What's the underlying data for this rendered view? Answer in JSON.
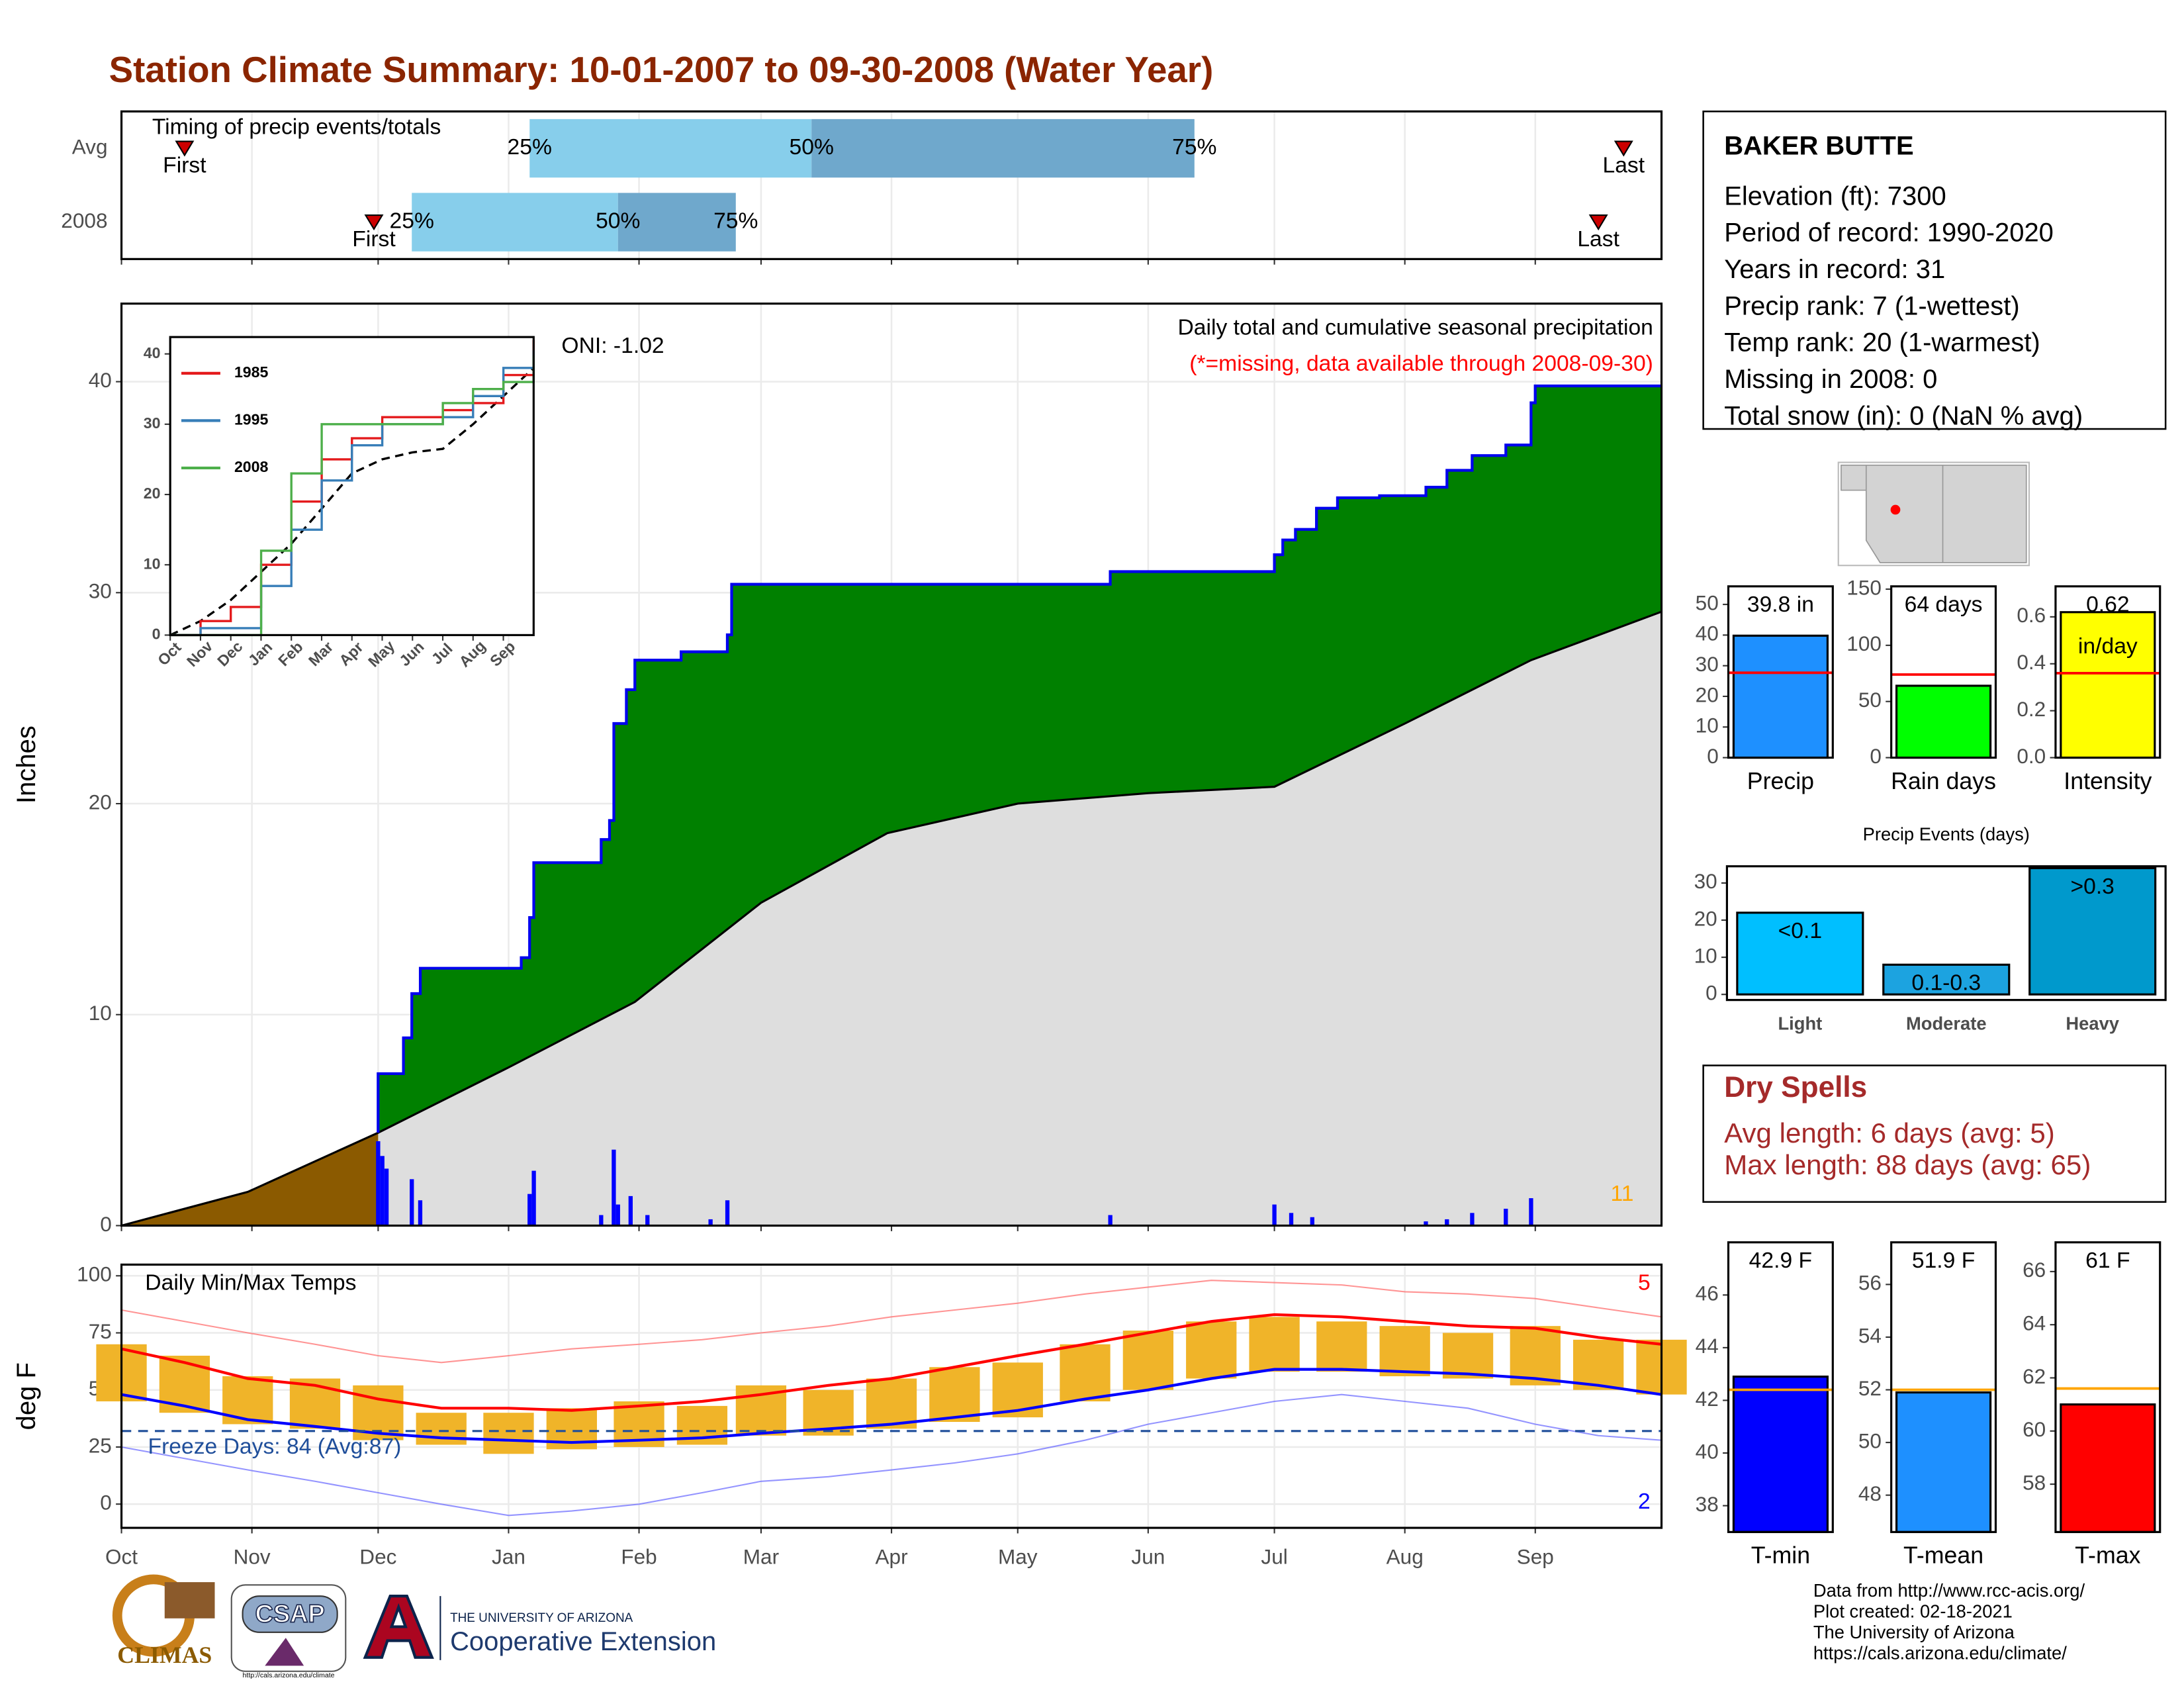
{
  "title": "Station Climate Summary: 10-01-2007 to 09-30-2008 (Water Year)",
  "station": {
    "name": "BAKER BUTTE",
    "lines": [
      "Elevation (ft): 7300",
      "Period of record: 1990-2020",
      "Years in record: 31",
      "Precip rank: 7 (1-wettest)",
      "Temp rank: 20 (1-warmest)",
      "Missing in 2008: 0",
      "Total snow (in): 0 (NaN % avg)"
    ]
  },
  "dry_spells": {
    "title": "Dry Spells",
    "lines": [
      "Avg length: 6 days (avg: 5)",
      "Max length: 88 days (avg: 65)"
    ]
  },
  "footer": {
    "credits": [
      "Data from http://www.rcc-acis.org/",
      "Plot created: 02-18-2021",
      "The University of Arizona",
      "https://cals.arizona.edu/climate/"
    ],
    "logos": [
      "CLIMAS",
      "CSAP",
      "http://cals.arizona.edu/climate",
      "THE UNIVERSITY OF ARIZONA",
      "Cooperative Extension"
    ]
  },
  "chart_data": [
    {
      "type": "timing",
      "title": "Timing of precip events/totals",
      "categories": [
        "Avg",
        "2008"
      ],
      "series": [
        {
          "name": "First",
          "values": [
            15,
            60
          ]
        },
        {
          "name": "25%",
          "values": [
            97,
            69
          ]
        },
        {
          "name": "50%",
          "values": [
            164,
            118
          ]
        },
        {
          "name": "75%",
          "values": [
            255,
            146
          ]
        },
        {
          "name": "Last",
          "values": [
            357,
            351
          ]
        }
      ],
      "colors": [
        "#87ceeb",
        "#6fa8cc"
      ],
      "marker_color": "#cc0000",
      "grid": true,
      "xlim": [
        0,
        366
      ],
      "xticks": [
        0,
        31,
        61,
        92,
        123,
        152,
        183,
        213,
        244,
        274,
        305,
        336
      ]
    },
    {
      "type": "cumulative_precip",
      "title": "Daily total and cumulative seasonal precipitation",
      "subtitle": "(*=missing, data available through 2008-09-30)",
      "oni": "ONI: -1.02",
      "count_label": "11",
      "ylabel": "Inches",
      "grid": true,
      "xlim": [
        0,
        366
      ],
      "xticks": [
        0,
        31,
        61,
        92,
        123,
        152,
        183,
        213,
        244,
        274,
        305,
        336
      ],
      "ylim": [
        0,
        43.7
      ],
      "yticks": [
        0,
        10,
        20,
        30,
        40
      ],
      "normal": {
        "color": "#dedede",
        "deficit_color": "#8b5a00",
        "x": [
          0,
          30,
          61,
          92,
          122,
          152,
          182,
          213,
          244,
          274,
          305,
          335,
          366
        ],
        "values": [
          0,
          1.6,
          4.4,
          7.5,
          10.6,
          15.3,
          18.6,
          20.0,
          20.5,
          20.8,
          23.8,
          26.8,
          29.1
        ]
      },
      "cumulative": {
        "color": "#0000ee",
        "fill": "#008000",
        "x": [
          61,
          61,
          67,
          69,
          71,
          86,
          95,
          97,
          98,
          114,
          116,
          117,
          120,
          122,
          133,
          144,
          145,
          235,
          274,
          276,
          279,
          284,
          289,
          299,
          310,
          315,
          321,
          329,
          335,
          336,
          366
        ],
        "values": [
          4.4,
          7.2,
          8.9,
          11.0,
          12.2,
          12.2,
          12.7,
          14.6,
          17.2,
          18.3,
          19.2,
          23.8,
          25.4,
          26.8,
          27.2,
          28.0,
          30.4,
          31.0,
          31.8,
          32.5,
          33.0,
          34.0,
          34.5,
          34.6,
          35.0,
          35.8,
          36.5,
          37.0,
          39.0,
          39.8,
          39.8
        ]
      },
      "daily": {
        "color": "#0000ff",
        "x": [
          61,
          62,
          63,
          69,
          71,
          97,
          98,
          114,
          117,
          118,
          121,
          125,
          140,
          144,
          235,
          274,
          278,
          283,
          310,
          315,
          321,
          329,
          335
        ],
        "values": [
          4.0,
          3.3,
          2.7,
          2.2,
          1.2,
          1.5,
          2.6,
          0.5,
          3.6,
          1.0,
          1.4,
          0.5,
          0.3,
          1.2,
          0.5,
          1.0,
          0.6,
          0.4,
          0.2,
          0.3,
          0.6,
          0.8,
          1.3
        ]
      }
    },
    {
      "type": "line",
      "legend": "top-left",
      "x": [
        0,
        1,
        2,
        3,
        4,
        5,
        6,
        7,
        8,
        9,
        10,
        11,
        12
      ],
      "xlim": [
        0,
        12
      ],
      "xticks": [
        {
          "value": 0,
          "label": "Oct"
        },
        {
          "value": 1,
          "label": "Nov"
        },
        {
          "value": 2,
          "label": "Dec"
        },
        {
          "value": 3,
          "label": "Jan"
        },
        {
          "value": 4,
          "label": "Feb"
        },
        {
          "value": 5,
          "label": "Mar"
        },
        {
          "value": 6,
          "label": "Apr"
        },
        {
          "value": 7,
          "label": "May"
        },
        {
          "value": 8,
          "label": "Jun"
        },
        {
          "value": 9,
          "label": "Jul"
        },
        {
          "value": 10,
          "label": "Aug"
        },
        {
          "value": 11,
          "label": "Sep"
        }
      ],
      "ylim": [
        0,
        42.4
      ],
      "yticks": [
        0,
        10,
        20,
        30,
        40
      ],
      "series": [
        {
          "name": "1985",
          "color": "#e41a1c",
          "values": [
            0,
            2,
            4,
            10,
            19,
            25,
            28,
            31,
            31,
            32,
            33,
            37,
            42
          ]
        },
        {
          "name": "1995",
          "color": "#377eb8",
          "values": [
            0,
            1,
            1,
            7,
            15,
            22,
            27,
            30,
            30,
            31,
            34,
            38,
            40.5
          ]
        },
        {
          "name": "2008",
          "color": "#4daf4a",
          "values": [
            0,
            0,
            0,
            12,
            23,
            30,
            30,
            30,
            30,
            33,
            35,
            36,
            39.8
          ]
        }
      ],
      "average": {
        "color": "#000000",
        "values": [
          0,
          2,
          5,
          9,
          13,
          18,
          23,
          25,
          26,
          26.5,
          30,
          34,
          38
        ]
      }
    },
    {
      "type": "bar",
      "xlabel": "Precip",
      "values": [
        39.8
      ],
      "value_labels": [
        "39.8 in"
      ],
      "color": "#1e90ff",
      "average": 27.7,
      "average_color": "#ff0000",
      "ylim": [
        0,
        55.9
      ],
      "yticks": [
        0,
        10,
        20,
        30,
        40,
        50
      ]
    },
    {
      "type": "bar",
      "xlabel": "Rain days",
      "values": [
        64
      ],
      "value_labels": [
        "64 days"
      ],
      "color": "#00ff00",
      "average": 74,
      "average_color": "#ff0000",
      "ylim": [
        0,
        152.5
      ],
      "yticks": [
        0,
        50,
        100,
        150
      ]
    },
    {
      "type": "bar",
      "xlabel": "Intensity",
      "values": [
        0.62
      ],
      "value_labels": [
        "0.62"
      ],
      "unit_label": "in/day",
      "color": "#ffff00",
      "average": 0.36,
      "average_color": "#ff0000",
      "ylim": [
        0,
        0.73
      ],
      "yticks": [
        {
          "value": 0,
          "label": "0.0"
        },
        0.2,
        0.4,
        0.6
      ]
    },
    {
      "type": "bar",
      "title": "Precip Events (days)",
      "categories": [
        "Light",
        "Moderate",
        "Heavy"
      ],
      "values": [
        22,
        8,
        34
      ],
      "bar_labels": [
        "<0.1",
        "0.1-0.3",
        ">0.3"
      ],
      "colors": [
        "#00bfff",
        "#1ca3e0",
        "#0099cc"
      ],
      "ylim": [
        -1.5,
        34.5
      ],
      "yticks": [
        0,
        10,
        20,
        30
      ]
    },
    {
      "type": "temperature",
      "title": "Daily Min/Max Temps",
      "ylabel": "deg F",
      "freeze_label": "Freeze Days: 84 (Avg:87)",
      "high_count": "5",
      "low_count": "2",
      "freeze": 32,
      "grid": true,
      "xlim": [
        0,
        366
      ],
      "xticks": [
        {
          "value": 0,
          "label": "Oct"
        },
        {
          "value": 31,
          "label": "Nov"
        },
        {
          "value": 61,
          "label": "Dec"
        },
        {
          "value": 92,
          "label": "Jan"
        },
        {
          "value": 123,
          "label": "Feb"
        },
        {
          "value": 152,
          "label": "Mar"
        },
        {
          "value": 183,
          "label": "Apr"
        },
        {
          "value": 213,
          "label": "May"
        },
        {
          "value": 244,
          "label": "Jun"
        },
        {
          "value": 274,
          "label": "Jul"
        },
        {
          "value": 305,
          "label": "Aug"
        },
        {
          "value": 336,
          "label": "Sep"
        }
      ],
      "ylim": [
        -10.4,
        104.9
      ],
      "yticks": [
        0,
        25,
        50,
        75,
        100
      ],
      "x": [
        0,
        15,
        30,
        46,
        61,
        76,
        92,
        107,
        123,
        138,
        152,
        168,
        183,
        198,
        213,
        229,
        244,
        259,
        274,
        290,
        305,
        320,
        336,
        351,
        366
      ],
      "normal_max": {
        "color": "#ff0000",
        "values": [
          68,
          62,
          55,
          52,
          46,
          42,
          42,
          41,
          43,
          45,
          48,
          52,
          55,
          60,
          65,
          70,
          75,
          80,
          83,
          82,
          80,
          78,
          77,
          73,
          70
        ]
      },
      "normal_min": {
        "color": "#0000ff",
        "values": [
          48,
          43,
          37,
          34,
          31,
          29,
          28,
          27,
          28,
          29,
          31,
          33,
          35,
          38,
          41,
          46,
          50,
          55,
          59,
          59,
          58,
          57,
          55,
          52,
          48
        ]
      },
      "observed_max": {
        "color": "#f0b429",
        "values": [
          70,
          65,
          56,
          55,
          52,
          40,
          40,
          42,
          45,
          43,
          52,
          50,
          55,
          60,
          62,
          70,
          76,
          80,
          82,
          80,
          78,
          75,
          78,
          72,
          72
        ]
      },
      "observed_min": {
        "values": [
          45,
          40,
          35,
          33,
          28,
          26,
          22,
          24,
          25,
          26,
          30,
          30,
          33,
          36,
          38,
          45,
          50,
          55,
          58,
          58,
          56,
          55,
          52,
          50,
          48
        ]
      },
      "record_high": {
        "color": "#ff6666",
        "values": [
          85,
          80,
          75,
          70,
          65,
          62,
          65,
          68,
          70,
          72,
          75,
          78,
          82,
          85,
          88,
          92,
          95,
          98,
          97,
          96,
          93,
          92,
          90,
          86,
          82
        ]
      },
      "record_low": {
        "color": "#6666ff",
        "values": [
          25,
          20,
          15,
          10,
          5,
          0,
          -5,
          -3,
          0,
          5,
          10,
          12,
          15,
          18,
          22,
          28,
          35,
          40,
          45,
          48,
          45,
          42,
          35,
          30,
          28
        ]
      },
      "freeze_color": "#1f4e9a"
    },
    {
      "type": "bar",
      "xlabel": "T-min",
      "values": [
        42.9
      ],
      "value_labels": [
        "42.9 F"
      ],
      "color": "#0000ff",
      "average": 42.4,
      "average_color": "#ffa500",
      "ylim": [
        37.0,
        48.0
      ],
      "yticks": [
        38,
        40,
        42,
        44,
        46
      ]
    },
    {
      "type": "bar",
      "xlabel": "T-mean",
      "values": [
        51.9
      ],
      "value_labels": [
        "51.9 F"
      ],
      "color": "#1e90ff",
      "average": 52.0,
      "average_color": "#ffa500",
      "ylim": [
        46.6,
        57.6
      ],
      "yticks": [
        48,
        50,
        52,
        54,
        56
      ]
    },
    {
      "type": "bar",
      "xlabel": "T-max",
      "values": [
        61
      ],
      "value_labels": [
        "61 F"
      ],
      "color": "#ff0000",
      "average": 61.6,
      "average_color": "#ffa500",
      "ylim": [
        56.2,
        67.1
      ],
      "yticks": [
        58,
        60,
        62,
        64,
        66
      ]
    }
  ]
}
